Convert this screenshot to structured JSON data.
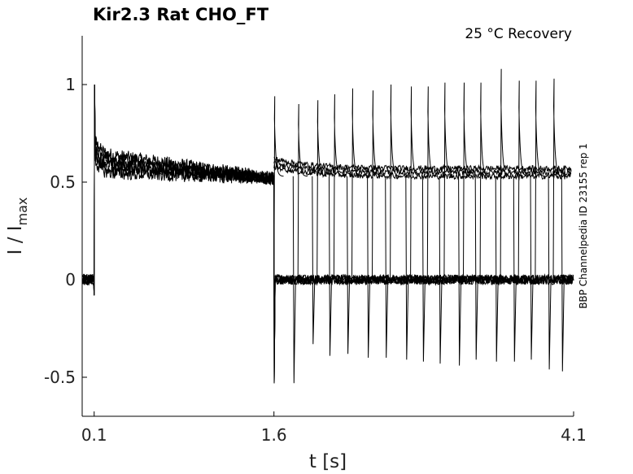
{
  "chart_data": {
    "type": "line",
    "title": "Kir2.3  Rat  CHO_FT",
    "annotation": "25 °C  Recovery",
    "side_label": "BBP Channelpedia ID 23155 rep 1",
    "xlabel": "t [s]",
    "ylabel": "I / I",
    "ylabel_sub": "max",
    "xlim": [
      0.0,
      4.1
    ],
    "ylim": [
      -0.7,
      1.25
    ],
    "x_ticks": [
      0.1,
      1.6,
      4.1
    ],
    "y_ticks": [
      -0.5,
      0,
      0.5,
      1
    ],
    "y_tick_labels": [
      "-0.5",
      "0",
      "0.5",
      "1"
    ],
    "x_tick_labels": [
      "0.1",
      "1.6",
      "4.1"
    ],
    "grid": false,
    "color": "#000000",
    "conditioning_pulse": {
      "start": 0.1,
      "end": 1.6,
      "peak": 1.0,
      "plateau_start": 0.65,
      "plateau_end": 0.52
    },
    "test_pulse_starts": [
      1.6,
      1.8,
      1.96,
      2.1,
      2.25,
      2.42,
      2.57,
      2.74,
      2.88,
      3.02,
      3.18,
      3.32,
      3.49,
      3.64,
      3.78,
      3.93
    ],
    "test_pulse_peaks": [
      0.94,
      0.9,
      0.92,
      0.95,
      0.98,
      0.97,
      1.0,
      0.99,
      0.99,
      1.01,
      1.01,
      1.01,
      1.08,
      1.02,
      1.02,
      1.03
    ],
    "test_pulse_undershoots": [
      -0.53,
      -0.33,
      -0.39,
      -0.38,
      -0.4,
      -0.4,
      -0.41,
      -0.42,
      -0.43,
      -0.44,
      -0.41,
      -0.42,
      -0.42,
      -0.41,
      -0.46,
      -0.47
    ],
    "test_pulse_plateau": 0.53
  }
}
